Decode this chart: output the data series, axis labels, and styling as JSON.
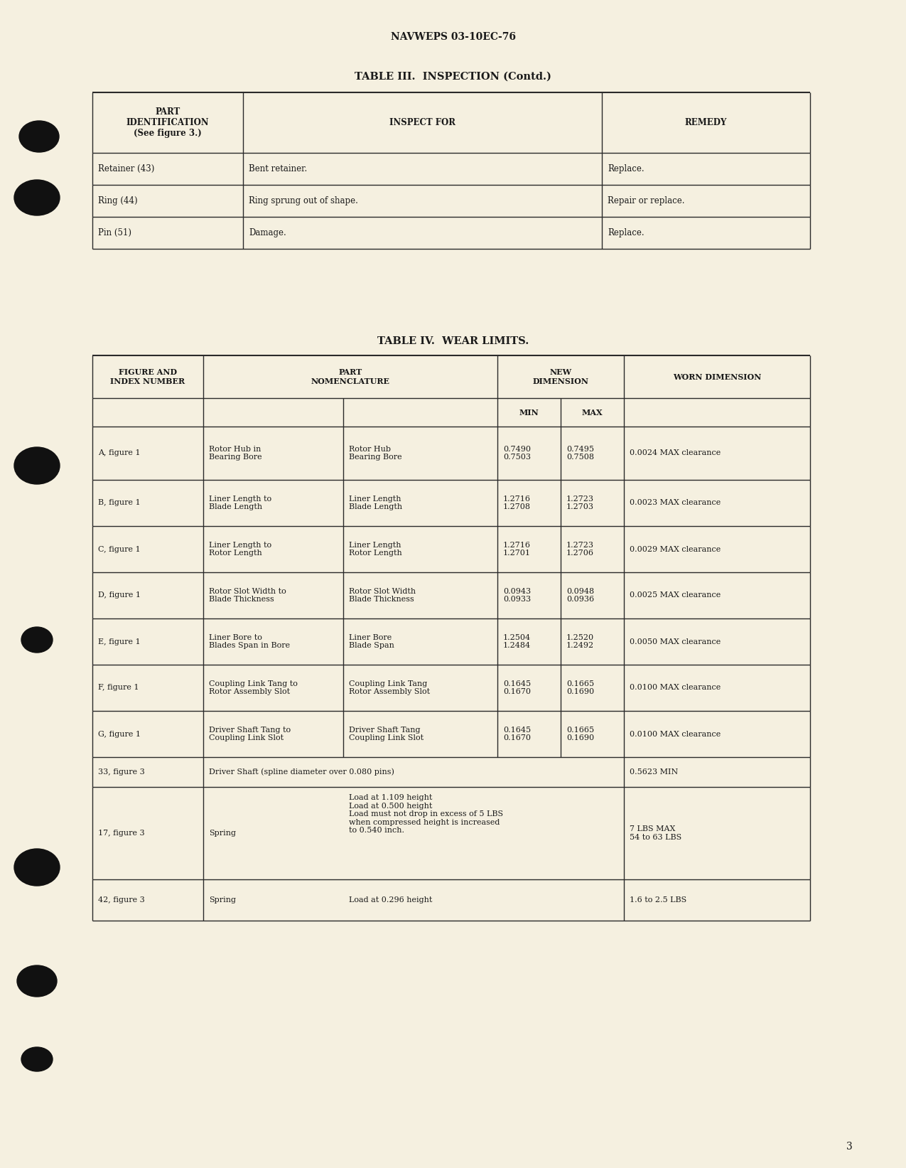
{
  "page_bg": "#f5f0e0",
  "header_text": "NAVWEPS 03-10EC-76",
  "page_number": "3",
  "table1": {
    "title": "TABLE III.  INSPECTION (Contd.)",
    "headers": [
      "PART\nIDENTIFICATION\n(See figure 3.)",
      "INSPECT FOR",
      "REMEDY"
    ],
    "rows": [
      [
        "Retainer (43)",
        "Bent retainer.",
        "Replace."
      ],
      [
        "Ring (44)",
        "Ring sprung out of shape.",
        "Repair or replace."
      ],
      [
        "Pin (51)",
        "Damage.",
        "Replace."
      ]
    ]
  },
  "table2": {
    "title": "TABLE IV.  WEAR LIMITS.",
    "rows": [
      {
        "col0": "A, figure 1",
        "col1": "Rotor Hub in\nBearing Bore",
        "col2": "Rotor Hub\nBearing Bore",
        "col3_min": "0.7490\n0.7503",
        "col3_max": "0.7495\n0.7508",
        "col4": "0.0024 MAX clearance"
      },
      {
        "col0": "B, figure 1",
        "col1": "Liner Length to\nBlade Length",
        "col2": "Liner Length\nBlade Length",
        "col3_min": "1.2716\n1.2708",
        "col3_max": "1.2723\n1.2703",
        "col4": "0.0023 MAX clearance"
      },
      {
        "col0": "C, figure 1",
        "col1": "Liner Length to\nRotor Length",
        "col2": "Liner Length\nRotor Length",
        "col3_min": "1.2716\n1.2701",
        "col3_max": "1.2723\n1.2706",
        "col4": "0.0029 MAX clearance"
      },
      {
        "col0": "D, figure 1",
        "col1": "Rotor Slot Width to\nBlade Thickness",
        "col2": "Rotor Slot Width\nBlade Thickness",
        "col3_min": "0.0943\n0.0933",
        "col3_max": "0.0948\n0.0936",
        "col4": "0.0025 MAX clearance"
      },
      {
        "col0": "E, figure 1",
        "col1": "Liner Bore to\nBlades Span in Bore",
        "col2": "Liner Bore\nBlade Span",
        "col3_min": "1.2504\n1.2484",
        "col3_max": "1.2520\n1.2492",
        "col4": "0.0050 MAX clearance"
      },
      {
        "col0": "F, figure 1",
        "col1": "Coupling Link Tang to\nRotor Assembly Slot",
        "col2": "Coupling Link Tang\nRotor Assembly Slot",
        "col3_min": "0.1645\n0.1670",
        "col3_max": "0.1665\n0.1690",
        "col4": "0.0100 MAX clearance"
      },
      {
        "col0": "G, figure 1",
        "col1": "Driver Shaft Tang to\nCoupling Link Slot",
        "col2": "Driver Shaft Tang\nCoupling Link Slot",
        "col3_min": "0.1645\n0.1670",
        "col3_max": "0.1665\n0.1690",
        "col4": "0.0100 MAX clearance"
      },
      {
        "col0": "33, figure 3",
        "col1": "Driver Shaft (spline diameter over 0.080 pins)",
        "col2": "",
        "col3_min": "",
        "col3_max": "",
        "col4": "0.5623 MIN"
      },
      {
        "col0": "17, figure 3",
        "col1": "Spring",
        "col2": "Load at 1.109 height\nLoad at 0.500 height\nLoad must not drop in excess of 5 LBS\nwhen compressed height is increased\nto 0.540 inch.",
        "col3_min": "",
        "col3_max": "",
        "col4": "7 LBS MAX\n54 to 63 LBS"
      },
      {
        "col0": "42, figure 3",
        "col1": "Spring",
        "col2": "Load at 0.296 height",
        "col3_min": "",
        "col3_max": "",
        "col4": "1.6 to 2.5 LBS"
      }
    ]
  },
  "text_color": "#1a1a1a",
  "line_color": "#2a2a2a"
}
